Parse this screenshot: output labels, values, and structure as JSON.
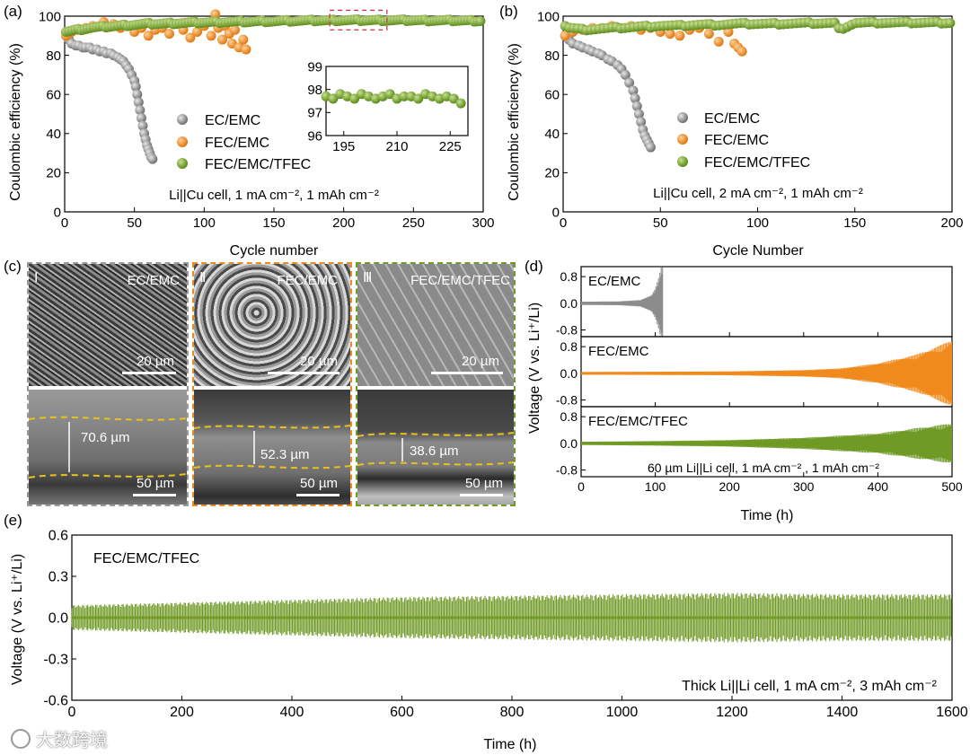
{
  "panel_labels": {
    "a": "(a)",
    "b": "(b)",
    "c": "(c)",
    "d": "(d)",
    "e": "(e)"
  },
  "colors": {
    "ec": "#8c8c8c",
    "fec": "#f08a1c",
    "tfec": "#6f9a25",
    "inset_box": "#c0394b",
    "dashed_line": "#e8c21c"
  },
  "chart_data": [
    {
      "id": "a",
      "type": "scatter",
      "xlabel": "Cycle number",
      "ylabel": "Coulombic efficiency (%)",
      "xlim": [
        0,
        300
      ],
      "ylim": [
        0,
        100
      ],
      "xticks": [
        0,
        50,
        100,
        150,
        200,
        250,
        300
      ],
      "yticks": [
        0,
        20,
        40,
        60,
        80,
        100
      ],
      "series": [
        {
          "name": "EC/EMC",
          "color_key": "ec",
          "x": [
            1,
            3,
            5,
            8,
            10,
            13,
            15,
            18,
            20,
            23,
            25,
            28,
            30,
            33,
            35,
            38,
            40,
            42,
            44,
            46,
            48,
            50,
            51,
            52,
            53,
            54,
            55,
            56,
            57,
            58,
            59,
            60,
            61,
            62,
            63
          ],
          "y": [
            90,
            88,
            86,
            85,
            85,
            84,
            84,
            84,
            83,
            83,
            82,
            82,
            81,
            81,
            80,
            79,
            78,
            77,
            75,
            73,
            70,
            67,
            64,
            60,
            56,
            52,
            48,
            44,
            40,
            37,
            34,
            32,
            30,
            28,
            27
          ]
        },
        {
          "name": "FEC/EMC",
          "color_key": "fec",
          "x": [
            1,
            5,
            10,
            15,
            20,
            25,
            28,
            35,
            40,
            45,
            50,
            55,
            60,
            65,
            70,
            75,
            80,
            85,
            90,
            95,
            100,
            105,
            108,
            110,
            113,
            115,
            118,
            120,
            122,
            125,
            128,
            130
          ],
          "y": [
            90,
            92,
            93,
            94,
            95,
            95,
            97,
            96,
            94,
            95,
            92,
            94,
            90,
            93,
            94,
            91,
            96,
            93,
            89,
            92,
            95,
            90,
            101,
            94,
            88,
            95,
            91,
            86,
            93,
            84,
            88,
            83
          ]
        },
        {
          "name": "FEC/EMC/TFEC",
          "color_key": "tfec",
          "x": [
            1,
            10,
            20,
            30,
            40,
            50,
            60,
            70,
            80,
            90,
            100,
            110,
            120,
            130,
            140,
            150,
            160,
            170,
            180,
            190,
            200,
            210,
            220,
            230,
            240,
            250,
            260,
            270,
            280,
            290,
            300
          ],
          "y": [
            92,
            93,
            94,
            94.5,
            95,
            95.5,
            96,
            96,
            96.3,
            96.5,
            96.7,
            96.8,
            97,
            97,
            97.2,
            97.3,
            97.4,
            97.5,
            97.6,
            97.6,
            97.7,
            97.7,
            97.7,
            97.7,
            97.7,
            97.7,
            97.6,
            97.6,
            97.6,
            97.5,
            97.5
          ]
        }
      ],
      "legend": [
        "EC/EMC",
        "FEC/EMC",
        "FEC/EMC/TFEC"
      ],
      "annotation": "Li||Cu cell, 1 mA cm⁻², 1 mAh cm⁻²",
      "zoom_box_x": [
        190,
        231
      ],
      "zoom_box_y": [
        93,
        103
      ],
      "inset": {
        "xlim": [
          190,
          230
        ],
        "ylim": [
          96,
          99
        ],
        "xticks": [
          195,
          210,
          225
        ],
        "yticks": [
          96,
          97,
          98,
          99
        ],
        "x": [
          190,
          192,
          194,
          196,
          198,
          200,
          202,
          204,
          206,
          208,
          210,
          212,
          214,
          216,
          218,
          220,
          222,
          224,
          226,
          228
        ],
        "y": [
          97.7,
          97.6,
          97.8,
          97.7,
          97.6,
          97.8,
          97.7,
          97.6,
          97.7,
          97.8,
          97.6,
          97.7,
          97.7,
          97.6,
          97.8,
          97.7,
          97.6,
          97.7,
          97.6,
          97.4
        ]
      }
    },
    {
      "id": "b",
      "type": "scatter",
      "xlabel": "Cycle Number",
      "ylabel": "Coulombic efficiency (%)",
      "xlim": [
        0,
        200
      ],
      "ylim": [
        0,
        100
      ],
      "xticks": [
        0,
        50,
        100,
        150,
        200
      ],
      "yticks": [
        0,
        20,
        40,
        60,
        80,
        100
      ],
      "series": [
        {
          "name": "EC/EMC",
          "color_key": "ec",
          "x": [
            1,
            3,
            5,
            8,
            10,
            13,
            15,
            18,
            20,
            23,
            25,
            28,
            30,
            32,
            34,
            36,
            37,
            38,
            39,
            40,
            41,
            42,
            43,
            44,
            45
          ],
          "y": [
            90,
            88,
            86,
            85,
            84,
            83,
            82,
            81,
            80,
            78,
            77,
            75,
            73,
            70,
            66,
            62,
            58,
            54,
            50,
            46,
            42,
            39,
            37,
            35,
            33
          ]
        },
        {
          "name": "FEC/EMC",
          "color_key": "fec",
          "x": [
            1,
            5,
            10,
            15,
            20,
            25,
            30,
            35,
            40,
            45,
            50,
            55,
            60,
            65,
            70,
            75,
            80,
            85,
            88,
            90,
            92
          ],
          "y": [
            90,
            92,
            93,
            94,
            94,
            95,
            94,
            95,
            93,
            94,
            92,
            91,
            90,
            93,
            94,
            91,
            87,
            92,
            86,
            84,
            82
          ]
        },
        {
          "name": "FEC/EMC/TFEC",
          "color_key": "tfec",
          "x": [
            1,
            3,
            10,
            20,
            30,
            40,
            50,
            60,
            70,
            80,
            90,
            100,
            110,
            120,
            130,
            140,
            142,
            150,
            160,
            170,
            180,
            190,
            200
          ],
          "y": [
            95,
            94,
            93,
            93.5,
            94,
            94.5,
            95,
            95,
            95.5,
            95.5,
            96,
            96,
            96,
            96.2,
            96.3,
            96.3,
            93,
            96.4,
            96.5,
            96.5,
            96.5,
            96.5,
            96.5
          ]
        }
      ],
      "legend": [
        "EC/EMC",
        "FEC/EMC",
        "FEC/EMC/TFEC"
      ],
      "annotation": "Li||Cu cell, 2 mA cm⁻², 1 mAh cm⁻²"
    },
    {
      "id": "d",
      "type": "line",
      "xlabel": "Time (h)",
      "ylabel": "Voltage (V vs. Li⁺/Li)",
      "xlim": [
        0,
        500
      ],
      "xticks": [
        0,
        100,
        200,
        300,
        400,
        500
      ],
      "subplots": [
        {
          "name": "EC/EMC",
          "color_key": "ec",
          "ylim": [
            -1.0,
            1.1
          ],
          "yticks": [
            0.8,
            0.0,
            -0.8
          ],
          "envelope_x": [
            0,
            50,
            80,
            95,
            100,
            105,
            108,
            110
          ],
          "envelope_amp": [
            0.05,
            0.06,
            0.1,
            0.25,
            0.45,
            0.8,
            1.1,
            1.1
          ],
          "end_x": 110
        },
        {
          "name": "FEC/EMC",
          "color_key": "fec",
          "ylim": [
            -1.0,
            1.1
          ],
          "yticks": [
            0.8,
            0.0,
            -0.8
          ],
          "envelope_x": [
            0,
            100,
            200,
            300,
            350,
            400,
            450,
            480,
            500
          ],
          "envelope_amp": [
            0.04,
            0.05,
            0.06,
            0.1,
            0.15,
            0.3,
            0.55,
            0.8,
            1.0
          ],
          "end_x": 500
        },
        {
          "name": "FEC/EMC/TFEC",
          "color_key": "tfec",
          "ylim": [
            -1.0,
            1.1
          ],
          "yticks": [
            0.8,
            0.0,
            -0.8
          ],
          "envelope_x": [
            0,
            100,
            200,
            300,
            400,
            450,
            500
          ],
          "envelope_amp": [
            0.05,
            0.07,
            0.1,
            0.17,
            0.3,
            0.45,
            0.6
          ],
          "end_x": 500
        }
      ],
      "annotation": "60 µm Li||Li cell, 1 mA cm⁻² , 1 mAh cm⁻²"
    },
    {
      "id": "e",
      "type": "line",
      "xlabel": "Time (h)",
      "ylabel": "Voltage (V vs. Li⁺/Li)",
      "xlim": [
        0,
        1600
      ],
      "ylim": [
        -0.6,
        0.6
      ],
      "xticks": [
        0,
        200,
        400,
        600,
        800,
        1000,
        1200,
        1400,
        1600
      ],
      "yticks": [
        0.6,
        0.3,
        0.0,
        -0.3,
        -0.6
      ],
      "series_name": "FEC/EMC/TFEC",
      "color_key": "tfec",
      "envelope_x": [
        0,
        200,
        400,
        600,
        800,
        1000,
        1200,
        1400,
        1600
      ],
      "envelope_amp": [
        0.09,
        0.11,
        0.13,
        0.15,
        0.16,
        0.17,
        0.18,
        0.17,
        0.17
      ],
      "annotation": "Thick Li||Li cell, 1 mA cm⁻², 3 mAh cm⁻²"
    }
  ],
  "sem": {
    "panels": [
      {
        "numeral": "Ⅰ",
        "title": "EC/EMC",
        "top_scale": "20 µm",
        "bot_scale": "50 µm",
        "thickness": "70.6 µm"
      },
      {
        "numeral": "Ⅱ",
        "title": "FEC/EMC",
        "top_scale": "20 µm",
        "bot_scale": "50 µm",
        "thickness": "52.3 µm"
      },
      {
        "numeral": "Ⅲ",
        "title": "FEC/EMC/TFEC",
        "top_scale": "20 µm",
        "bot_scale": "50 µm",
        "thickness": "38.6 µm"
      }
    ]
  },
  "watermark": "大数跨境"
}
